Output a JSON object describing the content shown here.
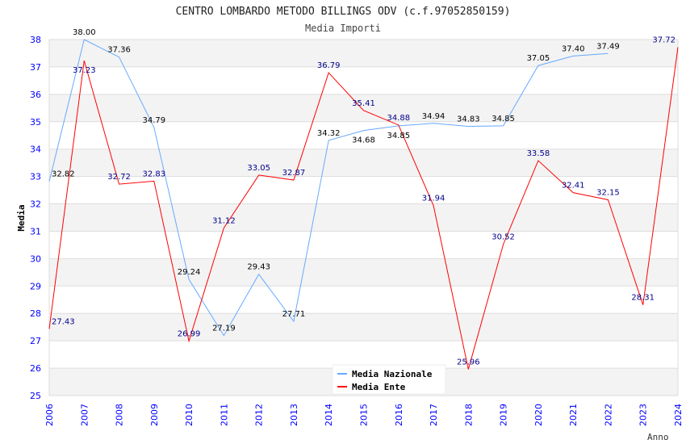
{
  "chart_data": {
    "type": "line",
    "title": "CENTRO LOMBARDO METODO BILLINGS ODV (c.f.97052850159)",
    "subtitle": "Media Importi",
    "xlabel": "Anno",
    "ylabel": "Media",
    "ylim": [
      25,
      38
    ],
    "yticks": [
      "25",
      "26",
      "27",
      "28",
      "29",
      "30",
      "31",
      "32",
      "33",
      "34",
      "35",
      "36",
      "37",
      "38"
    ],
    "x": [
      "2006",
      "2007",
      "2008",
      "2009",
      "2010",
      "2011",
      "2012",
      "2013",
      "2014",
      "2015",
      "2016",
      "2017",
      "2018",
      "2019",
      "2020",
      "2021",
      "2022",
      "2023",
      "2024"
    ],
    "legend_position": "top-right",
    "series": [
      {
        "name": "Media Nazionale",
        "color": "#66aaff",
        "label_color": "#000000",
        "values": [
          32.82,
          38.0,
          37.36,
          34.79,
          29.24,
          27.19,
          29.43,
          27.71,
          34.32,
          34.68,
          34.85,
          34.94,
          34.83,
          34.85,
          37.05,
          37.4,
          37.49,
          null,
          null
        ]
      },
      {
        "name": "Media Ente",
        "color": "#ff0000",
        "label_color": "#00008b",
        "values": [
          27.43,
          37.23,
          32.72,
          32.83,
          26.99,
          31.12,
          33.05,
          32.87,
          36.79,
          35.41,
          34.88,
          31.94,
          25.96,
          30.52,
          33.58,
          32.41,
          32.15,
          28.31,
          37.72
        ]
      }
    ]
  }
}
